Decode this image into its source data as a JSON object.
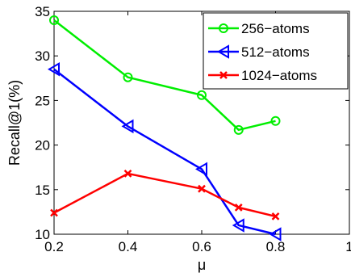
{
  "chart_data": {
    "type": "line",
    "xlabel": "μ",
    "ylabel": "Recall@1(%)",
    "xlim": [
      0.2,
      1
    ],
    "ylim": [
      10,
      35
    ],
    "xticks": [
      "0.2",
      "0.4",
      "0.6",
      "0.8",
      "1"
    ],
    "yticks": [
      "10",
      "15",
      "20",
      "25",
      "30",
      "35"
    ],
    "grid": false,
    "legend": "top-right",
    "series": [
      {
        "name": "256−atoms",
        "color": "#00ee00",
        "marker": "circle",
        "x": [
          0.2,
          0.4,
          0.6,
          0.7,
          0.8
        ],
        "y": [
          34.0,
          27.6,
          25.6,
          21.7,
          22.7
        ]
      },
      {
        "name": "512−atoms",
        "color": "#0000ff",
        "marker": "triangle-left",
        "x": [
          0.2,
          0.4,
          0.6,
          0.7,
          0.8
        ],
        "y": [
          28.5,
          22.1,
          17.3,
          11.0,
          10.0
        ]
      },
      {
        "name": "1024−atoms",
        "color": "#ff0000",
        "marker": "x",
        "x": [
          0.2,
          0.4,
          0.6,
          0.7,
          0.8
        ],
        "y": [
          12.4,
          16.8,
          15.1,
          13.0,
          12.0
        ]
      }
    ]
  }
}
